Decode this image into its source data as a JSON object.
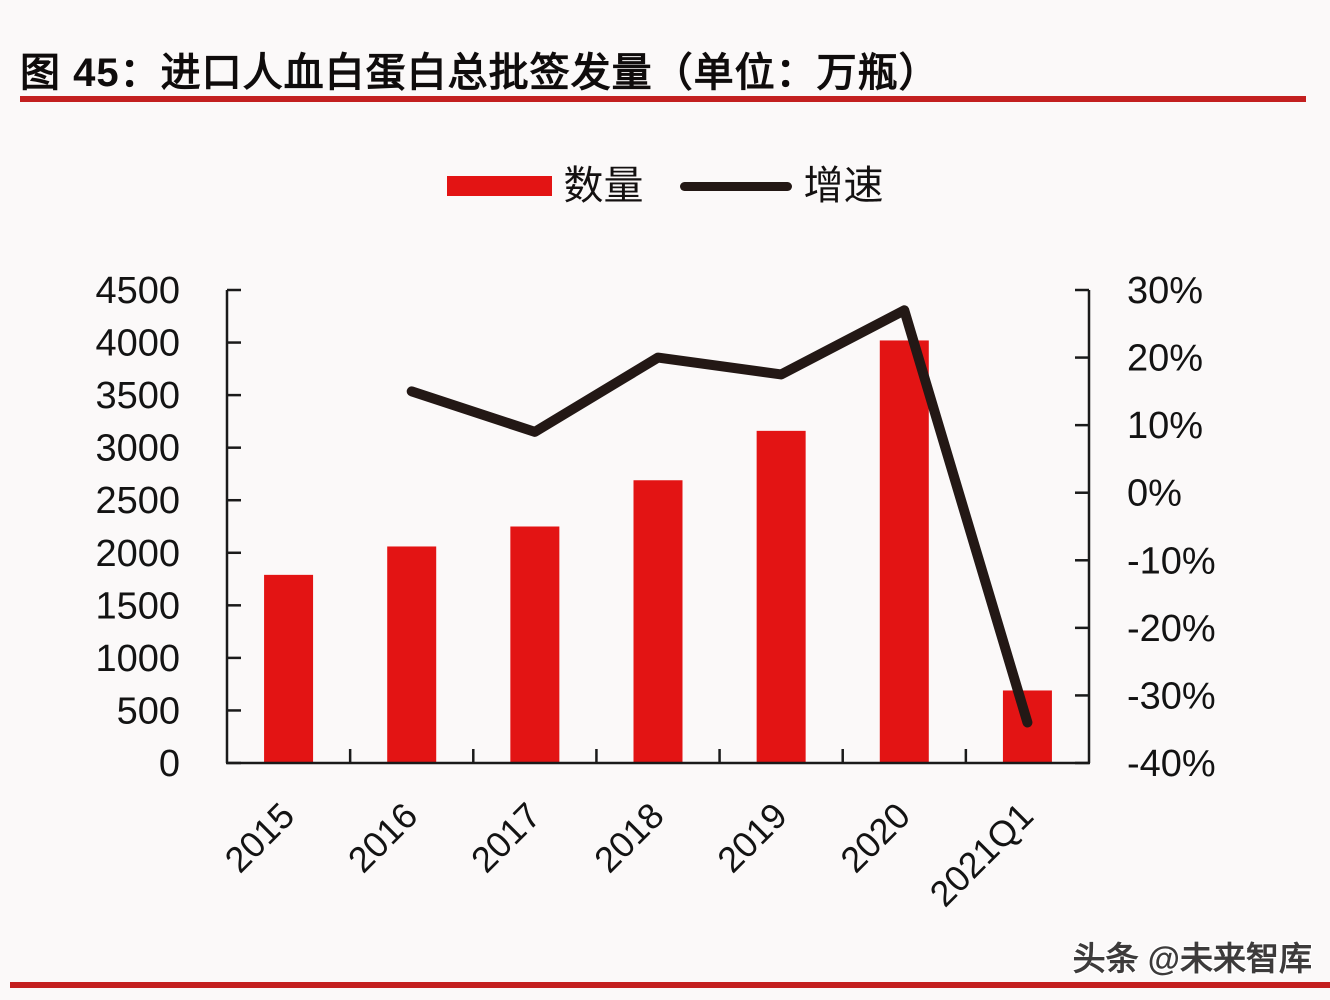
{
  "page": {
    "title": "图 45：进口人血白蛋白总批签发量（单位：万瓶）",
    "watermark": "头条 @未来智库"
  },
  "legend": {
    "quantity_label": "数量",
    "growth_label": "增速"
  },
  "colors": {
    "bar_red": "#e31414",
    "line_dark": "#231815",
    "rule_red": "#c32020",
    "axis_black": "#1a1a1a",
    "label_black": "#131313",
    "watermark_gray": "#3d3b3b"
  },
  "chart_data": {
    "type": "bar+line",
    "title": "进口人血白蛋白总批签发量",
    "unit": "万瓶",
    "categories": [
      "2015",
      "2016",
      "2017",
      "2018",
      "2019",
      "2020",
      "2021Q1"
    ],
    "series": [
      {
        "name": "数量",
        "type": "bar",
        "axis": "left",
        "values": [
          1790,
          2060,
          2250,
          2690,
          3160,
          4020,
          690
        ]
      },
      {
        "name": "增速",
        "type": "line",
        "axis": "right",
        "values": [
          null,
          15,
          9,
          20,
          17.5,
          27,
          -34
        ]
      }
    ],
    "left_axis": {
      "min": 0,
      "max": 4500,
      "step": 500,
      "suffix": ""
    },
    "right_axis": {
      "min": -40,
      "max": 30,
      "step": 10,
      "suffix": "%"
    },
    "grid": false,
    "legend_position": "top-center"
  }
}
